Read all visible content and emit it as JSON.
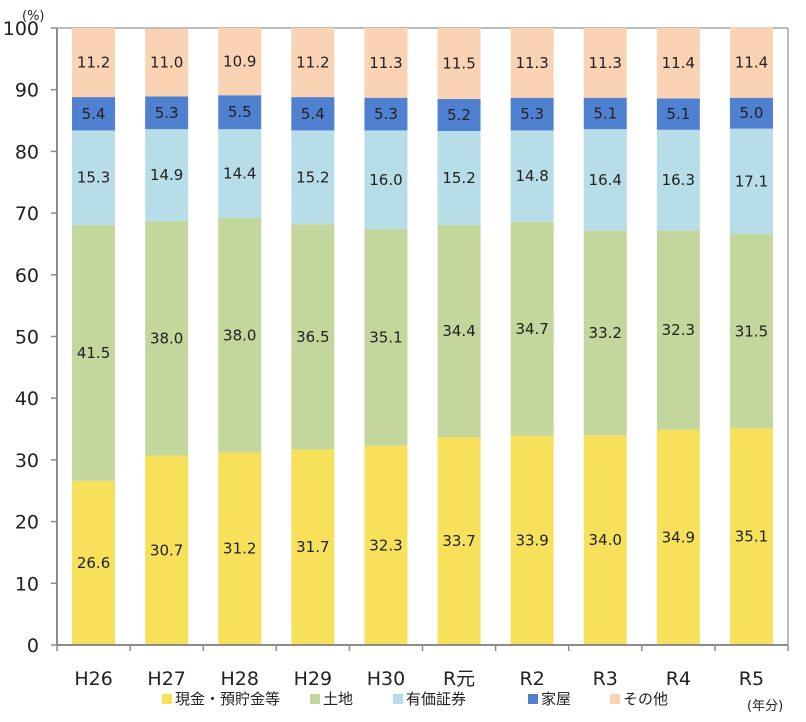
{
  "chart_data": {
    "type": "bar",
    "stacked": true,
    "title": "",
    "xlabel": "",
    "ylabel": "",
    "y_unit_label": "(%)",
    "x_unit_label": "(年分)",
    "ylim": [
      0,
      100
    ],
    "yticks": [
      0,
      10,
      20,
      30,
      40,
      50,
      60,
      70,
      80,
      90,
      100
    ],
    "grid": false,
    "legend_position": "bottom",
    "categories": [
      "H26",
      "H27",
      "H28",
      "H29",
      "H30",
      "R元",
      "R2",
      "R3",
      "R4",
      "R5"
    ],
    "series": [
      {
        "name": "現金・預貯金等",
        "color": "#F7E15A",
        "values": [
          26.6,
          30.7,
          31.2,
          31.7,
          32.3,
          33.7,
          33.9,
          34.0,
          34.9,
          35.1
        ]
      },
      {
        "name": "土地",
        "color": "#C3D69B",
        "values": [
          41.5,
          38.0,
          38.0,
          36.5,
          35.1,
          34.4,
          34.7,
          33.2,
          32.3,
          31.5
        ]
      },
      {
        "name": "有価証券",
        "color": "#B7DDE8",
        "values": [
          15.3,
          14.9,
          14.4,
          15.2,
          16.0,
          15.2,
          14.8,
          16.4,
          16.3,
          17.1
        ]
      },
      {
        "name": "家屋",
        "color": "#4F81D0",
        "values": [
          5.4,
          5.3,
          5.5,
          5.4,
          5.3,
          5.2,
          5.3,
          5.1,
          5.1,
          5.0
        ]
      },
      {
        "name": "その他",
        "color": "#FAD3B4",
        "values": [
          11.2,
          11.0,
          10.9,
          11.2,
          11.3,
          11.5,
          11.3,
          11.3,
          11.4,
          11.4
        ]
      }
    ]
  }
}
